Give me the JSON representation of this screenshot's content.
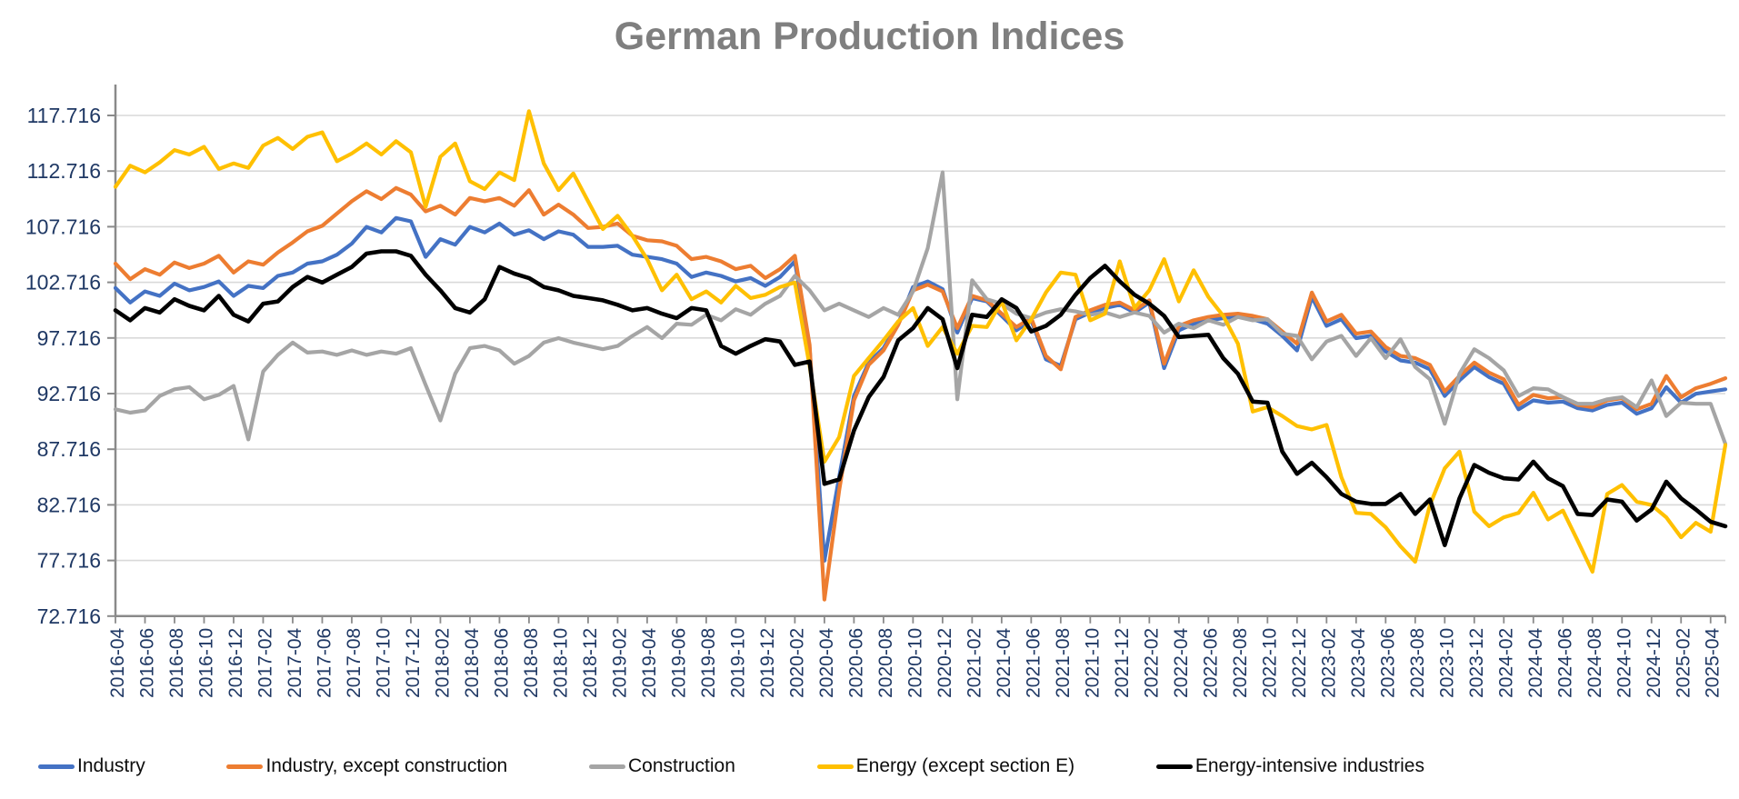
{
  "chart_data": {
    "type": "line",
    "title": "German Production Indices",
    "grid": true,
    "legend_position": "bottom",
    "axis_label_color": "#1f3864",
    "title_color": "#7f7f7f",
    "gridline_color": "#d9d9d9",
    "axis_line_color": "#8a8a8a",
    "ylim": [
      72.716,
      121.0
    ],
    "y_tick_labels": [
      "117.716",
      "112.716",
      "107.716",
      "102.716",
      "97.716",
      "92.716",
      "87.716",
      "82.716",
      "77.716",
      "72.716"
    ],
    "y_ticks": [
      117.716,
      112.716,
      107.716,
      102.716,
      97.716,
      92.716,
      87.716,
      82.716,
      77.716,
      72.716
    ],
    "x_tick_labels": [
      "2016-04",
      "2016-06",
      "2016-08",
      "2016-10",
      "2016-12",
      "2017-02",
      "2017-04",
      "2017-06",
      "2017-08",
      "2017-10",
      "2017-12",
      "2018-02",
      "2018-04",
      "2018-06",
      "2018-08",
      "2018-10",
      "2018-12",
      "2019-02",
      "2019-04",
      "2019-06",
      "2019-08",
      "2019-10",
      "2019-12",
      "2020-02",
      "2020-04",
      "2020-06",
      "2020-08",
      "2020-10",
      "2020-12",
      "2021-02",
      "2021-04",
      "2021-06",
      "2021-08",
      "2021-10",
      "2021-12",
      "2022-02",
      "2022-04",
      "2022-06",
      "2022-08",
      "2022-10",
      "2022-12",
      "2023-02",
      "2023-04",
      "2023-06",
      "2023-08",
      "2023-10",
      "2023-12",
      "2024-02",
      "2024-04",
      "2024-06",
      "2024-08",
      "2024-10",
      "2024-12",
      "2025-02",
      "2025-04"
    ],
    "x_range": [
      "2016-04",
      "2025-05"
    ],
    "n_points": 110,
    "series": [
      {
        "name": "Industry",
        "color": "#4472c4",
        "values": [
          102.2,
          100.9,
          101.9,
          101.5,
          102.6,
          102.0,
          102.3,
          102.8,
          101.5,
          102.4,
          102.2,
          103.3,
          103.6,
          104.4,
          104.6,
          105.2,
          106.2,
          107.7,
          107.2,
          108.5,
          108.2,
          105.0,
          106.6,
          106.1,
          107.7,
          107.2,
          108.0,
          107.0,
          107.4,
          106.6,
          107.3,
          107.0,
          105.9,
          105.9,
          106.0,
          105.2,
          105.0,
          104.8,
          104.4,
          103.2,
          103.6,
          103.3,
          102.8,
          103.1,
          102.4,
          103.2,
          104.6,
          96.8,
          77.7,
          85.2,
          92.5,
          95.5,
          96.8,
          99.0,
          102.3,
          102.8,
          102.1,
          98.2,
          101.3,
          101.0,
          99.7,
          98.4,
          99.3,
          95.8,
          95.2,
          99.4,
          100.0,
          100.4,
          100.7,
          100.0,
          100.9,
          95.0,
          98.4,
          99.0,
          99.3,
          99.5,
          99.6,
          99.4,
          99.0,
          97.9,
          96.6,
          101.4,
          98.8,
          99.4,
          97.7,
          97.9,
          96.5,
          95.7,
          95.5,
          94.9,
          92.5,
          93.9,
          95.1,
          94.2,
          93.6,
          91.3,
          92.1,
          91.9,
          92.0,
          91.4,
          91.2,
          91.7,
          91.9,
          90.9,
          91.4,
          93.3,
          91.9,
          92.7,
          92.9,
          93.1
        ]
      },
      {
        "name": "Industry, except construction",
        "color": "#ed7d31",
        "values": [
          104.4,
          103.0,
          103.9,
          103.4,
          104.5,
          104.0,
          104.4,
          105.1,
          103.6,
          104.6,
          104.3,
          105.4,
          106.3,
          107.3,
          107.8,
          108.9,
          110.0,
          110.9,
          110.2,
          111.2,
          110.6,
          109.1,
          109.6,
          108.8,
          110.3,
          110.0,
          110.3,
          109.6,
          111.0,
          108.8,
          109.7,
          108.8,
          107.6,
          107.7,
          108.0,
          106.9,
          106.5,
          106.4,
          106.0,
          104.8,
          105.0,
          104.6,
          103.9,
          104.2,
          103.1,
          103.9,
          105.1,
          97.1,
          74.2,
          84.0,
          92.1,
          95.3,
          96.6,
          98.9,
          102.0,
          102.5,
          101.9,
          98.6,
          101.5,
          101.1,
          99.9,
          98.7,
          99.5,
          96.1,
          94.9,
          99.6,
          100.2,
          100.7,
          100.9,
          100.2,
          101.1,
          95.4,
          98.8,
          99.3,
          99.6,
          99.8,
          99.9,
          99.7,
          99.4,
          98.3,
          97.2,
          101.8,
          99.2,
          99.8,
          98.1,
          98.3,
          96.9,
          96.1,
          95.9,
          95.3,
          92.9,
          94.3,
          95.5,
          94.6,
          94.0,
          91.7,
          92.6,
          92.3,
          92.4,
          91.7,
          91.5,
          92.1,
          92.3,
          91.3,
          91.8,
          94.3,
          92.4,
          93.2,
          93.6,
          94.1
        ]
      },
      {
        "name": "Construction",
        "color": "#a5a5a5",
        "values": [
          91.3,
          91.0,
          91.2,
          92.5,
          93.1,
          93.3,
          92.2,
          92.6,
          93.4,
          88.6,
          94.7,
          96.2,
          97.3,
          96.4,
          96.5,
          96.2,
          96.6,
          96.2,
          96.5,
          96.3,
          96.8,
          93.5,
          90.3,
          94.5,
          96.8,
          97.0,
          96.6,
          95.4,
          96.1,
          97.3,
          97.7,
          97.3,
          97.0,
          96.7,
          97.0,
          97.9,
          98.7,
          97.7,
          99.0,
          98.9,
          99.8,
          99.3,
          100.3,
          99.8,
          100.8,
          101.5,
          103.3,
          102.0,
          100.2,
          100.8,
          100.2,
          99.6,
          100.4,
          99.8,
          101.9,
          105.8,
          112.6,
          92.2,
          102.9,
          101.2,
          100.8,
          99.9,
          99.5,
          100.0,
          100.3,
          100.1,
          99.8,
          100.0,
          99.6,
          100.0,
          99.7,
          98.2,
          99.0,
          98.6,
          99.3,
          98.9,
          99.6,
          99.3,
          99.4,
          98.1,
          97.9,
          95.8,
          97.4,
          97.9,
          96.1,
          97.7,
          95.9,
          97.6,
          95.1,
          94.0,
          90.0,
          94.5,
          96.7,
          95.9,
          94.8,
          92.5,
          93.2,
          93.1,
          92.4,
          91.8,
          91.8,
          92.2,
          92.4,
          91.5,
          93.9,
          90.7,
          91.9,
          91.8,
          91.8,
          88.2
        ]
      },
      {
        "name": "Energy (except section E)",
        "color": "#ffc000",
        "values": [
          111.3,
          113.2,
          112.6,
          113.5,
          114.6,
          114.2,
          114.9,
          112.9,
          113.4,
          113.0,
          115.0,
          115.7,
          114.7,
          115.8,
          116.2,
          113.6,
          114.3,
          115.2,
          114.2,
          115.4,
          114.4,
          109.5,
          114.0,
          115.2,
          111.8,
          111.1,
          112.6,
          111.9,
          118.1,
          113.4,
          111.0,
          112.5,
          110.0,
          107.5,
          108.7,
          106.9,
          104.8,
          102.0,
          103.4,
          101.2,
          101.9,
          100.9,
          102.4,
          101.3,
          101.6,
          102.3,
          102.7,
          95.2,
          86.6,
          88.8,
          94.3,
          95.9,
          97.5,
          99.2,
          100.4,
          97.0,
          98.7,
          96.3,
          98.8,
          98.7,
          101.0,
          97.5,
          99.4,
          101.8,
          103.6,
          103.4,
          99.3,
          99.9,
          104.6,
          100.4,
          102.0,
          104.8,
          101.0,
          103.8,
          101.4,
          99.7,
          97.2,
          91.1,
          91.5,
          90.7,
          89.8,
          89.5,
          89.9,
          85.2,
          82.0,
          81.9,
          80.7,
          79.0,
          77.6,
          82.7,
          86.0,
          87.5,
          82.1,
          80.8,
          81.6,
          82.0,
          83.8,
          81.4,
          82.2,
          79.5,
          76.7,
          83.7,
          84.5,
          83.0,
          82.7,
          81.6,
          79.8,
          81.1,
          80.3,
          88.1
        ]
      },
      {
        "name": "Energy-intensive industries",
        "color": "#000000",
        "values": [
          100.2,
          99.3,
          100.4,
          100.0,
          101.2,
          100.6,
          100.2,
          101.5,
          99.8,
          99.2,
          100.8,
          101.0,
          102.3,
          103.2,
          102.7,
          103.4,
          104.1,
          105.3,
          105.5,
          105.5,
          105.1,
          103.4,
          102.0,
          100.4,
          100.0,
          101.2,
          104.1,
          103.5,
          103.1,
          102.3,
          102.0,
          101.5,
          101.3,
          101.1,
          100.7,
          100.2,
          100.4,
          99.9,
          99.5,
          100.4,
          100.2,
          97.0,
          96.3,
          97.0,
          97.6,
          97.4,
          95.3,
          95.6,
          84.6,
          85.0,
          89.4,
          92.4,
          94.2,
          97.5,
          98.6,
          100.4,
          99.4,
          95.0,
          99.8,
          99.6,
          101.2,
          100.4,
          98.3,
          98.8,
          99.8,
          101.6,
          103.1,
          104.2,
          102.8,
          101.6,
          100.8,
          99.7,
          97.8,
          97.9,
          98.0,
          95.9,
          94.5,
          92.0,
          91.9,
          87.5,
          85.5,
          86.5,
          85.2,
          83.7,
          83.0,
          82.8,
          82.8,
          83.7,
          81.9,
          83.2,
          79.1,
          83.3,
          86.3,
          85.6,
          85.1,
          85.0,
          86.6,
          85.1,
          84.4,
          81.9,
          81.8,
          83.2,
          83.0,
          81.3,
          82.3,
          84.8,
          83.3,
          82.3,
          81.2,
          80.8
        ]
      }
    ]
  }
}
